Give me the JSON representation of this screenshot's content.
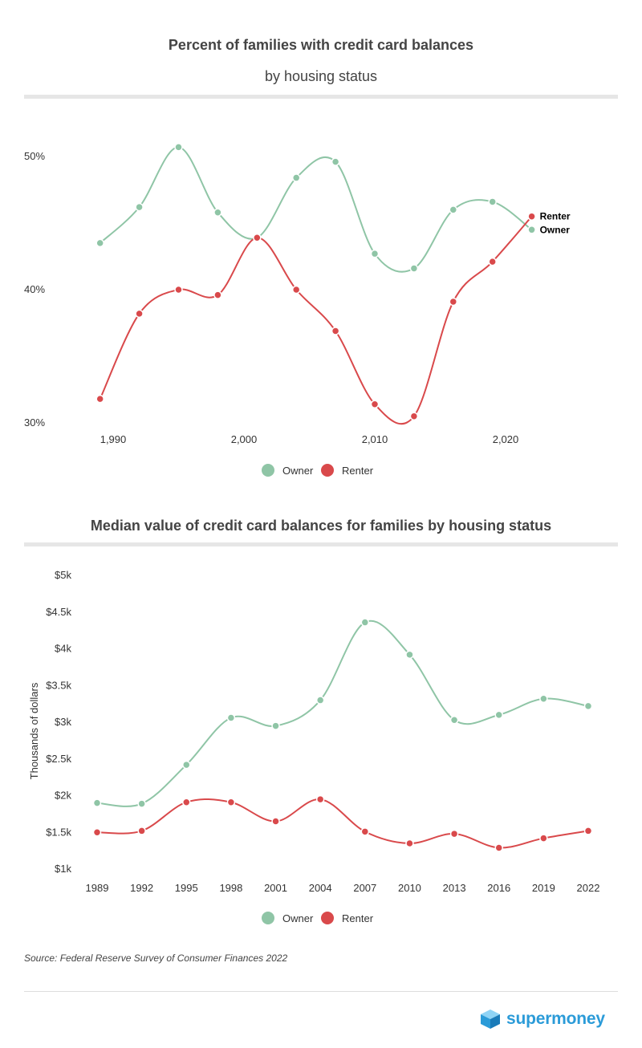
{
  "colors": {
    "owner": "#8fc5a6",
    "renter": "#d9494b",
    "brand": "#2b9bd8"
  },
  "chart_data": [
    {
      "type": "line",
      "title": "Percent of families with credit card balances",
      "subtitle": "by housing status",
      "xlabel": "",
      "ylabel": "",
      "x": [
        1989,
        1992,
        1995,
        1998,
        2001,
        2004,
        2007,
        2010,
        2013,
        2016,
        2019,
        2022
      ],
      "xlim": [
        1987,
        2027
      ],
      "ylim": [
        30,
        50
      ],
      "x_ticks": [
        1990,
        2000,
        2010,
        2020
      ],
      "x_tick_labels": [
        "1,990",
        "2,000",
        "2,010",
        "2,020"
      ],
      "y_ticks": [
        30,
        40,
        50
      ],
      "y_tick_labels": [
        "30%",
        "40%",
        "50%"
      ],
      "series": [
        {
          "name": "Owner",
          "color": "#8fc5a6",
          "values": [
            43.5,
            46.2,
            50.7,
            45.8,
            43.9,
            48.4,
            49.6,
            42.7,
            41.6,
            46.0,
            46.6,
            44.5
          ]
        },
        {
          "name": "Renter",
          "color": "#d9494b",
          "values": [
            31.8,
            38.2,
            40.0,
            39.6,
            43.9,
            40.0,
            36.9,
            31.4,
            30.5,
            39.1,
            42.1,
            45.5
          ]
        }
      ],
      "end_labels": [
        "Renter",
        "Owner"
      ],
      "legend": {
        "position": "bottom",
        "items": [
          "Owner",
          "Renter"
        ]
      },
      "grid": false
    },
    {
      "type": "line",
      "title": "Median value of credit card balances for families by housing status",
      "xlabel": "",
      "ylabel": "Thousands of dollars",
      "categories": [
        "1989",
        "1992",
        "1995",
        "1998",
        "2001",
        "2004",
        "2007",
        "2010",
        "2013",
        "2016",
        "2019",
        "2022"
      ],
      "ylim": [
        1,
        5
      ],
      "y_ticks": [
        1,
        1.5,
        2,
        2.5,
        3,
        3.5,
        4,
        4.5,
        5
      ],
      "y_tick_labels": [
        "$1k",
        "$1.5k",
        "$2k",
        "$2.5k",
        "$3k",
        "$3.5k",
        "$4k",
        "$4.5k",
        "$5k"
      ],
      "series": [
        {
          "name": "Owner",
          "color": "#8fc5a6",
          "values": [
            1.9,
            1.89,
            2.42,
            3.06,
            2.95,
            3.3,
            4.36,
            3.92,
            3.03,
            3.1,
            3.32,
            3.22
          ]
        },
        {
          "name": "Renter",
          "color": "#d9494b",
          "values": [
            1.5,
            1.52,
            1.91,
            1.91,
            1.65,
            1.95,
            1.51,
            1.35,
            1.48,
            1.29,
            1.42,
            1.52
          ]
        }
      ],
      "legend": {
        "position": "bottom",
        "items": [
          "Owner",
          "Renter"
        ]
      },
      "grid": false
    }
  ],
  "footer": {
    "source": "Source: Federal Reserve Survey of Consumer Finances 2022",
    "brand": "supermoney"
  }
}
